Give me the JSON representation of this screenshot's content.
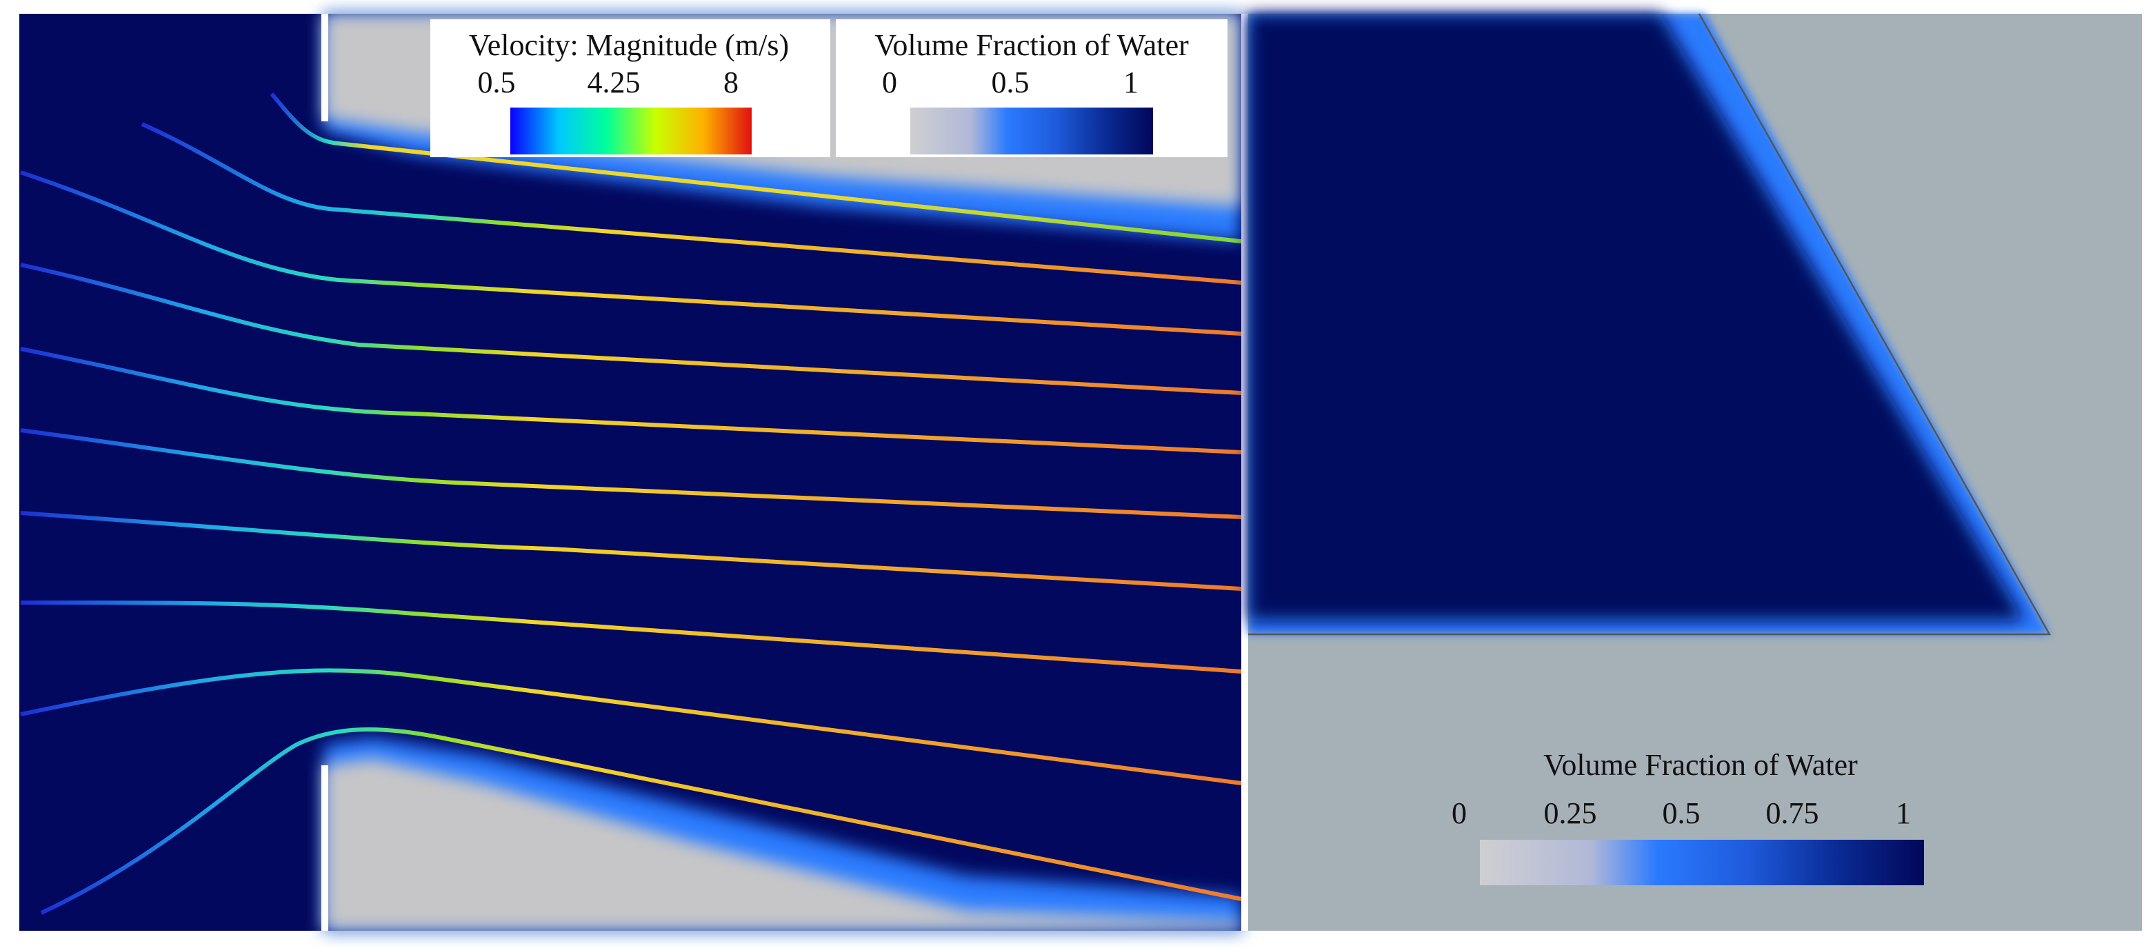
{
  "left_panel": {
    "velocity_legend": {
      "title": "Velocity: Magnitude (m/s)",
      "ticks": [
        0.5,
        4.25,
        8
      ]
    },
    "water_legend": {
      "title": "Volume Fraction of Water",
      "ticks": [
        0,
        0.5,
        1
      ]
    }
  },
  "right_panel": {
    "water_legend": {
      "title": "Volume Fraction of Water",
      "ticks": [
        0,
        0.25,
        0.5,
        0.75,
        1
      ]
    }
  }
}
